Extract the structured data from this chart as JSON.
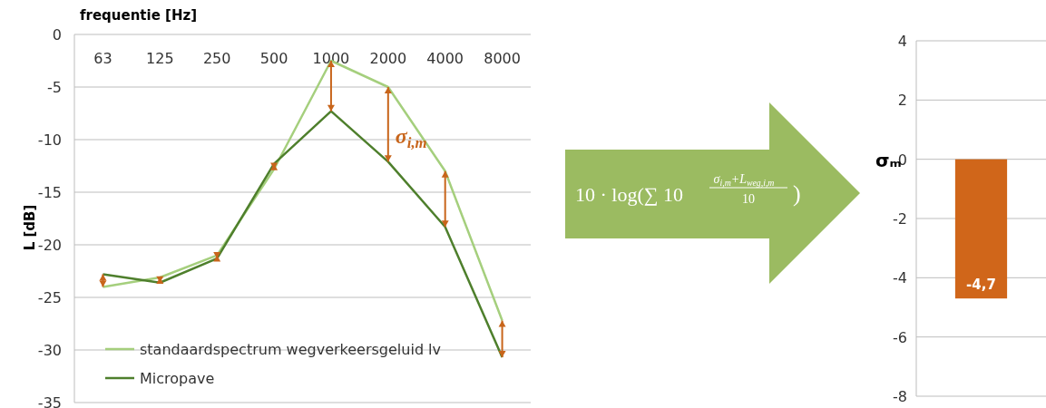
{
  "chart_data": [
    {
      "type": "line",
      "xlabel": "frequentie [Hz]",
      "ylabel": "L [dB]",
      "categories": [
        "63",
        "125",
        "250",
        "500",
        "1000",
        "2000",
        "4000",
        "8000"
      ],
      "ylim": [
        -35,
        0
      ],
      "yticks": [
        0,
        -5,
        -10,
        -15,
        -20,
        -25,
        -30,
        -35
      ],
      "grid": "y",
      "legend": "bottom left",
      "marker": "none",
      "line_style": "solid",
      "annotations": [
        {
          "text": "σ$_{i,m}$",
          "x": "2000",
          "y": -12.1
        }
      ],
      "series": [
        {
          "name": "standaardspectrum wegverkeersgeluid lv",
          "color": "#a5cf7d",
          "values": [
            -24,
            -23.1,
            -21,
            -12.8,
            -2.5,
            -5,
            -13,
            -27.2
          ]
        },
        {
          "name": "Micropave",
          "color": "#4e7f2c",
          "values": [
            -22.8,
            -23.6,
            -21.3,
            -12.3,
            -7.3,
            -12.1,
            -18.3,
            -30.7
          ]
        }
      ]
    },
    {
      "type": "bar",
      "ylabel": "σₘ",
      "categories": [
        null
      ],
      "values": [
        -4.7
      ],
      "color": "#d0661a",
      "value_labels": [
        "-4,7"
      ],
      "ylim": [
        -8,
        4
      ],
      "yticks": [
        -8,
        -6,
        -4,
        -2,
        0,
        2,
        4
      ],
      "grid": "y"
    },
    {
      "type": "other",
      "annotations": [
        "10 · log(∑ 10",
        "σ$_{i,m}$+L$_{weg,i,m}$",
        "10",
        ")"
      ]
    }
  ]
}
